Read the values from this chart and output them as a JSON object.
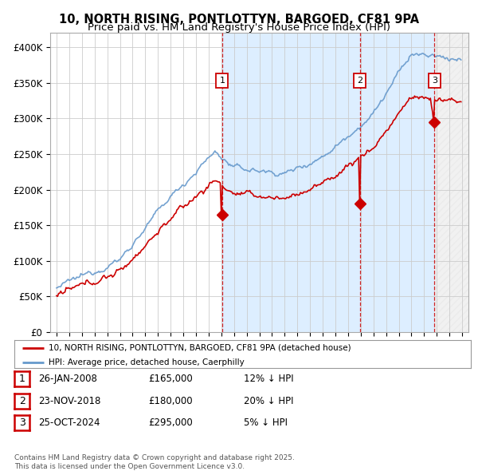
{
  "title": "10, NORTH RISING, PONTLOTTYN, BARGOED, CF81 9PA",
  "subtitle": "Price paid vs. HM Land Registry's House Price Index (HPI)",
  "title_fontsize": 10.5,
  "subtitle_fontsize": 9.5,
  "ylabel_ticks": [
    "£0",
    "£50K",
    "£100K",
    "£150K",
    "£200K",
    "£250K",
    "£300K",
    "£350K",
    "£400K"
  ],
  "ytick_values": [
    0,
    50000,
    100000,
    150000,
    200000,
    250000,
    300000,
    350000,
    400000
  ],
  "ylim": [
    0,
    420000
  ],
  "xlim_start": 1994.5,
  "xlim_end": 2027.5,
  "hpi_color": "#6699cc",
  "price_color": "#cc0000",
  "vline_color": "#cc0000",
  "shaded_between_color": "#ddeeff",
  "shaded_future_color": "#dddddd",
  "sale_dates_decimal": [
    2008.07,
    2018.92,
    2024.82
  ],
  "sale_prices": [
    165000,
    180000,
    295000
  ],
  "sale_labels": [
    "1",
    "2",
    "3"
  ],
  "legend_price_label": "10, NORTH RISING, PONTLOTTYN, BARGOED, CF81 9PA (detached house)",
  "legend_hpi_label": "HPI: Average price, detached house, Caerphilly",
  "table_rows": [
    [
      "1",
      "26-JAN-2008",
      "£165,000",
      "12% ↓ HPI"
    ],
    [
      "2",
      "23-NOV-2018",
      "£180,000",
      "20% ↓ HPI"
    ],
    [
      "3",
      "25-OCT-2024",
      "£295,000",
      "5% ↓ HPI"
    ]
  ],
  "footer": "Contains HM Land Registry data © Crown copyright and database right 2025.\nThis data is licensed under the Open Government Licence v3.0.",
  "background_color": "#ffffff",
  "grid_color": "#cccccc"
}
